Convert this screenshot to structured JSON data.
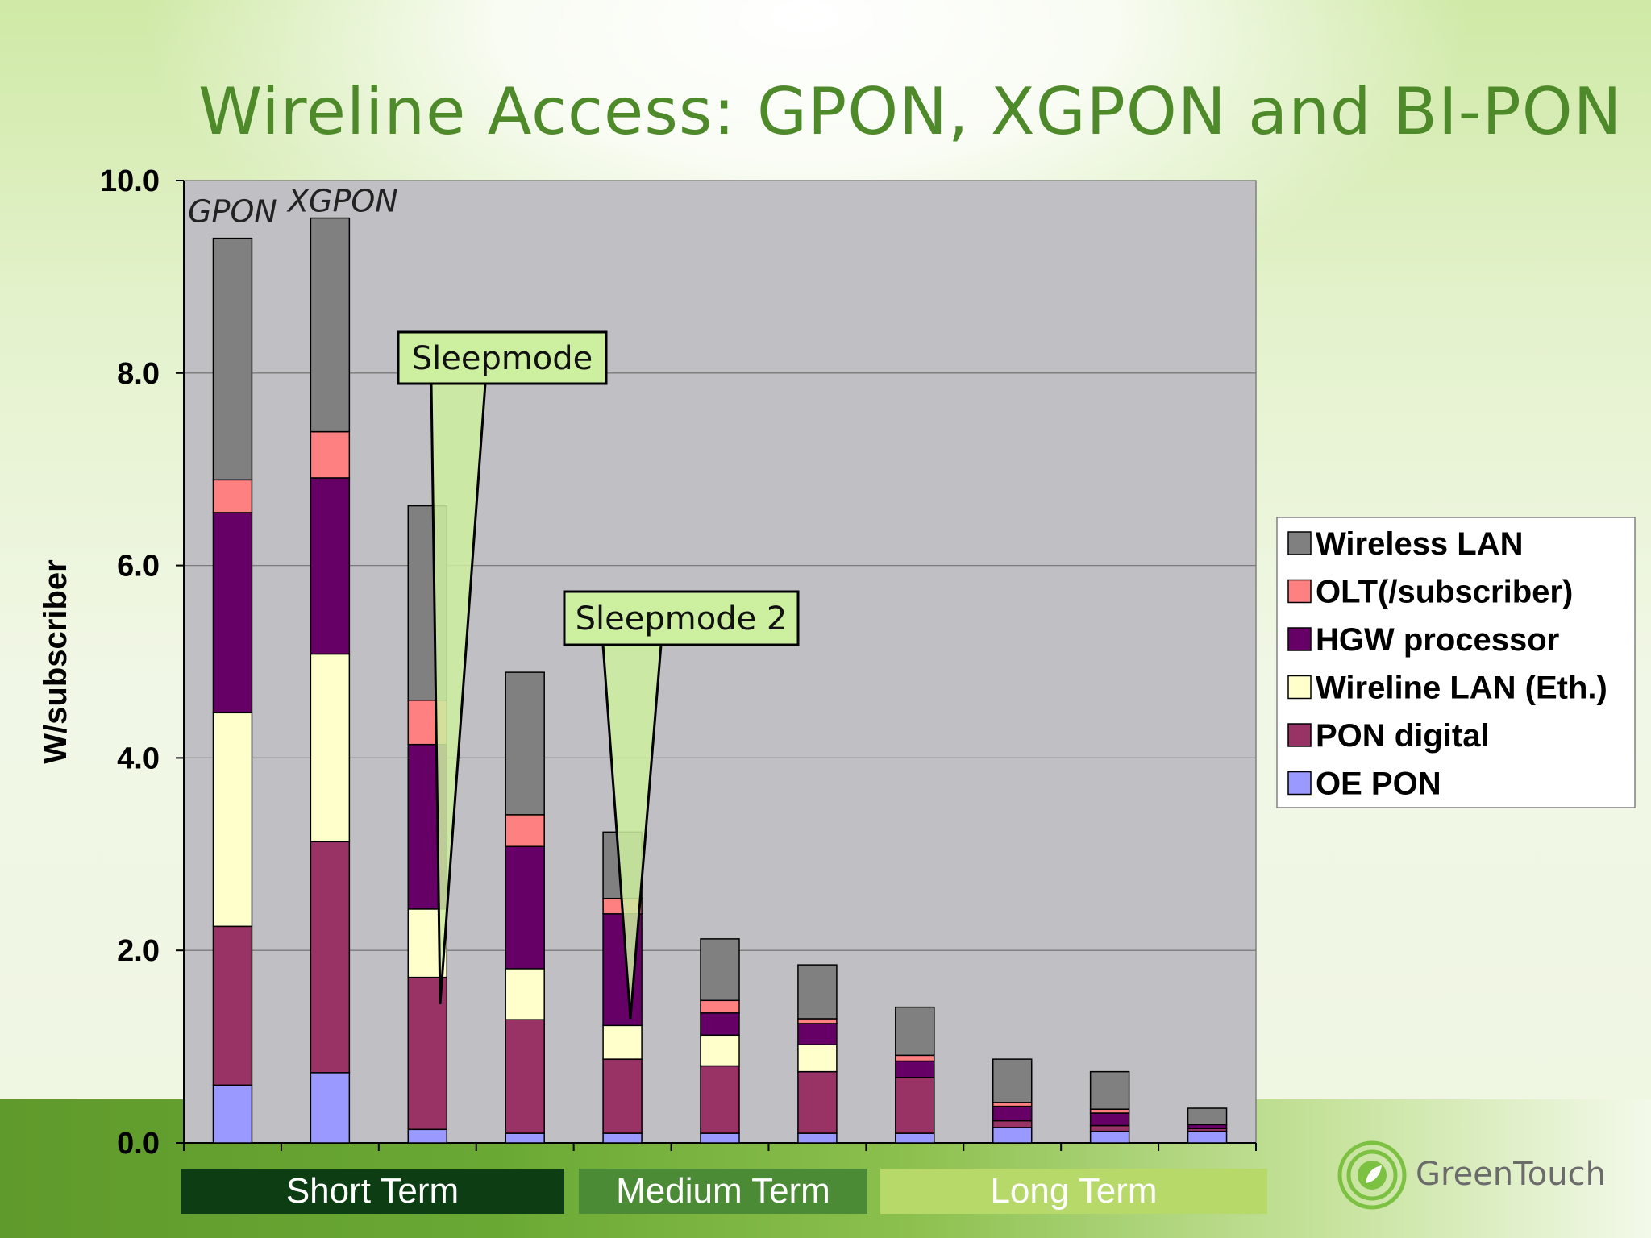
{
  "slide": {
    "title": "Wireline Access: GPON, XGPON and BI-PON",
    "terms": [
      "Short Term",
      "Medium Term",
      "Long Term"
    ],
    "logo_text": "GreenTouch"
  },
  "colors": {
    "plot_bg": "#c0bfc3",
    "wireless_lan": "#808080",
    "olt": "#ff8080",
    "hgw": "#660066",
    "wireline_lan": "#ffffcc",
    "pon_digital": "#993366",
    "oe_pon": "#9999ff",
    "callout_fill": "#ccf0a0",
    "title_green": "#4e8a2a"
  },
  "chart_data": {
    "type": "bar",
    "stacked": true,
    "ylabel": "W/subscriber",
    "xlabel": "",
    "ylim": [
      0,
      10
    ],
    "yticks": [
      "0.0",
      "2.0",
      "4.0",
      "6.0",
      "8.0",
      "10.0"
    ],
    "grid": true,
    "legend_position": "right",
    "bar_labels": [
      "GPON",
      "XGPON"
    ],
    "annotations": [
      "Sleepmode",
      "Sleepmode 2"
    ],
    "categories": [
      "",
      "",
      "",
      "",
      "",
      "",
      "",
      "",
      "",
      "",
      ""
    ],
    "series": [
      {
        "name": "OE PON",
        "values": [
          0.6,
          0.73,
          0.14,
          0.1,
          0.1,
          0.1,
          0.1,
          0.1,
          0.16,
          0.12,
          0.12
        ]
      },
      {
        "name": "PON digital",
        "values": [
          1.65,
          2.4,
          1.58,
          1.18,
          0.77,
          0.7,
          0.64,
          0.58,
          0.07,
          0.06,
          0.03
        ]
      },
      {
        "name": "Wireline LAN (Eth.)",
        "values": [
          2.22,
          1.95,
          0.71,
          0.53,
          0.35,
          0.32,
          0.28,
          0.0,
          0.0,
          0.0,
          0.0
        ]
      },
      {
        "name": "HGW processor",
        "values": [
          2.08,
          1.83,
          1.71,
          1.27,
          1.16,
          0.23,
          0.22,
          0.17,
          0.15,
          0.13,
          0.04
        ]
      },
      {
        "name": "OLT(/subscriber)",
        "values": [
          0.34,
          0.48,
          0.46,
          0.33,
          0.16,
          0.13,
          0.05,
          0.06,
          0.04,
          0.04,
          0.0
        ]
      },
      {
        "name": "Wireless LAN",
        "values": [
          2.51,
          2.22,
          2.02,
          1.48,
          0.69,
          0.64,
          0.56,
          0.5,
          0.45,
          0.39,
          0.17
        ]
      }
    ]
  }
}
